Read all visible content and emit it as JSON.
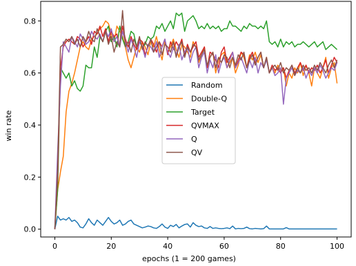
{
  "chart_data": {
    "type": "line",
    "title": "",
    "xlabel": "epochs (1 = 200 games)",
    "ylabel": "win rate",
    "xlim": [
      -5,
      105
    ],
    "ylim": [
      -0.03,
      0.875
    ],
    "xticks": [
      0,
      20,
      40,
      60,
      80,
      100
    ],
    "yticks": [
      0.0,
      0.2,
      0.4,
      0.6,
      0.8
    ],
    "xtick_labels": [
      "0",
      "20",
      "40",
      "60",
      "80",
      "100"
    ],
    "ytick_labels": [
      "0.0",
      "0.2",
      "0.4",
      "0.6",
      "0.8"
    ],
    "grid": false,
    "legend_position": "center",
    "x": [
      0,
      1,
      2,
      3,
      4,
      5,
      6,
      7,
      8,
      9,
      10,
      11,
      12,
      13,
      14,
      15,
      16,
      17,
      18,
      19,
      20,
      21,
      22,
      23,
      24,
      25,
      26,
      27,
      28,
      29,
      30,
      31,
      32,
      33,
      34,
      35,
      36,
      37,
      38,
      39,
      40,
      41,
      42,
      43,
      44,
      45,
      46,
      47,
      48,
      49,
      50,
      51,
      52,
      53,
      54,
      55,
      56,
      57,
      58,
      59,
      60,
      61,
      62,
      63,
      64,
      65,
      66,
      67,
      68,
      69,
      70,
      71,
      72,
      73,
      74,
      75,
      76,
      77,
      78,
      79,
      80,
      81,
      82,
      83,
      84,
      85,
      86,
      87,
      88,
      89,
      90,
      91,
      92,
      93,
      94,
      95,
      96,
      97,
      98,
      99,
      100
    ],
    "series": [
      {
        "name": "Random",
        "color": "#1f77b4",
        "values": [
          0.0,
          0.05,
          0.035,
          0.04,
          0.035,
          0.045,
          0.03,
          0.035,
          0.025,
          0.008,
          0.005,
          0.02,
          0.04,
          0.025,
          0.015,
          0.035,
          0.025,
          0.015,
          0.03,
          0.045,
          0.03,
          0.02,
          0.025,
          0.035,
          0.015,
          0.02,
          0.03,
          0.035,
          0.02,
          0.015,
          0.01,
          0.005,
          0.008,
          0.012,
          0.01,
          0.005,
          0.003,
          0.01,
          0.02,
          0.008,
          0.003,
          0.015,
          0.01,
          0.018,
          0.005,
          0.012,
          0.018,
          0.02,
          0.008,
          0.025,
          0.015,
          0.01,
          0.012,
          0.005,
          0.003,
          0.01,
          0.003,
          0.005,
          0.003,
          0.002,
          0.003,
          0.005,
          0.002,
          0.012,
          0.001,
          0.003,
          0.002,
          0.003,
          0.008,
          0.002,
          0.001,
          0.003,
          0.002,
          0.001,
          0.002,
          0.012,
          0.001,
          0.001,
          0.001,
          0.001,
          0.001,
          0.001,
          0.006,
          0.001,
          0.001,
          0.001,
          0.001,
          0.001,
          0.001,
          0.001,
          0.001,
          0.001,
          0.001,
          0.001,
          0.001,
          0.001,
          0.001,
          0.001,
          0.001,
          0.001,
          0.001
        ]
      },
      {
        "name": "Double-Q",
        "color": "#ff7f0e",
        "values": [
          0.0,
          0.15,
          0.22,
          0.28,
          0.45,
          0.53,
          0.56,
          0.6,
          0.65,
          0.7,
          0.72,
          0.7,
          0.69,
          0.73,
          0.74,
          0.75,
          0.77,
          0.78,
          0.8,
          0.79,
          0.75,
          0.72,
          0.78,
          0.76,
          0.74,
          0.7,
          0.65,
          0.62,
          0.66,
          0.7,
          0.68,
          0.72,
          0.7,
          0.67,
          0.72,
          0.7,
          0.74,
          0.69,
          0.65,
          0.72,
          0.68,
          0.7,
          0.73,
          0.69,
          0.66,
          0.71,
          0.7,
          0.68,
          0.66,
          0.72,
          0.7,
          0.64,
          0.67,
          0.7,
          0.62,
          0.66,
          0.68,
          0.6,
          0.65,
          0.67,
          0.68,
          0.62,
          0.64,
          0.66,
          0.6,
          0.63,
          0.68,
          0.66,
          0.62,
          0.67,
          0.65,
          0.68,
          0.64,
          0.67,
          0.62,
          0.66,
          0.6,
          0.62,
          0.6,
          0.63,
          0.61,
          0.62,
          0.55,
          0.6,
          0.58,
          0.62,
          0.6,
          0.64,
          0.59,
          0.63,
          0.6,
          0.55,
          0.62,
          0.6,
          0.58,
          0.62,
          0.66,
          0.58,
          0.62,
          0.64,
          0.56
        ]
      },
      {
        "name": "Target",
        "color": "#2ca02c",
        "values": [
          0.0,
          0.15,
          0.62,
          0.6,
          0.58,
          0.6,
          0.55,
          0.57,
          0.54,
          0.53,
          0.55,
          0.63,
          0.62,
          0.62,
          0.7,
          0.66,
          0.74,
          0.72,
          0.76,
          0.78,
          0.72,
          0.74,
          0.7,
          0.78,
          0.73,
          0.7,
          0.72,
          0.76,
          0.75,
          0.7,
          0.72,
          0.7,
          0.71,
          0.74,
          0.73,
          0.74,
          0.78,
          0.77,
          0.79,
          0.76,
          0.78,
          0.8,
          0.77,
          0.83,
          0.82,
          0.83,
          0.76,
          0.8,
          0.81,
          0.82,
          0.8,
          0.77,
          0.78,
          0.77,
          0.79,
          0.77,
          0.78,
          0.77,
          0.78,
          0.76,
          0.77,
          0.77,
          0.8,
          0.78,
          0.78,
          0.77,
          0.76,
          0.78,
          0.77,
          0.79,
          0.78,
          0.78,
          0.77,
          0.78,
          0.77,
          0.8,
          0.72,
          0.71,
          0.72,
          0.7,
          0.73,
          0.7,
          0.72,
          0.71,
          0.72,
          0.7,
          0.71,
          0.71,
          0.72,
          0.71,
          0.7,
          0.71,
          0.72,
          0.7,
          0.71,
          0.72,
          0.69,
          0.7,
          0.71,
          0.7,
          0.69
        ]
      },
      {
        "name": "QVMAX",
        "color": "#d62728",
        "values": [
          0.0,
          0.2,
          0.62,
          0.7,
          0.72,
          0.73,
          0.72,
          0.71,
          0.74,
          0.73,
          0.7,
          0.72,
          0.74,
          0.71,
          0.76,
          0.75,
          0.78,
          0.74,
          0.77,
          0.72,
          0.76,
          0.74,
          0.75,
          0.7,
          0.78,
          0.73,
          0.7,
          0.74,
          0.71,
          0.69,
          0.73,
          0.72,
          0.67,
          0.7,
          0.73,
          0.71,
          0.68,
          0.72,
          0.7,
          0.73,
          0.67,
          0.72,
          0.69,
          0.72,
          0.7,
          0.73,
          0.67,
          0.71,
          0.68,
          0.7,
          0.72,
          0.66,
          0.68,
          0.7,
          0.62,
          0.68,
          0.67,
          0.65,
          0.62,
          0.68,
          0.7,
          0.64,
          0.66,
          0.68,
          0.62,
          0.65,
          0.68,
          0.67,
          0.62,
          0.66,
          0.68,
          0.64,
          0.66,
          0.68,
          0.62,
          0.66,
          0.6,
          0.63,
          0.61,
          0.62,
          0.6,
          0.62,
          0.58,
          0.61,
          0.63,
          0.6,
          0.62,
          0.64,
          0.61,
          0.63,
          0.6,
          0.62,
          0.61,
          0.63,
          0.6,
          0.62,
          0.65,
          0.6,
          0.63,
          0.66,
          0.64
        ]
      },
      {
        "name": "Q",
        "color": "#9467bd",
        "values": [
          0.0,
          0.3,
          0.55,
          0.72,
          0.7,
          0.68,
          0.74,
          0.72,
          0.7,
          0.75,
          0.73,
          0.71,
          0.72,
          0.76,
          0.74,
          0.73,
          0.75,
          0.72,
          0.76,
          0.74,
          0.77,
          0.72,
          0.74,
          0.7,
          0.76,
          0.72,
          0.68,
          0.73,
          0.7,
          0.66,
          0.72,
          0.7,
          0.66,
          0.71,
          0.7,
          0.68,
          0.72,
          0.66,
          0.7,
          0.73,
          0.68,
          0.66,
          0.7,
          0.67,
          0.71,
          0.65,
          0.68,
          0.7,
          0.64,
          0.68,
          0.7,
          0.62,
          0.66,
          0.68,
          0.6,
          0.65,
          0.62,
          0.67,
          0.6,
          0.64,
          0.66,
          0.62,
          0.65,
          0.68,
          0.62,
          0.64,
          0.66,
          0.63,
          0.6,
          0.65,
          0.62,
          0.66,
          0.6,
          0.64,
          0.62,
          0.65,
          0.6,
          0.62,
          0.59,
          0.6,
          0.62,
          0.48,
          0.58,
          0.6,
          0.62,
          0.59,
          0.61,
          0.6,
          0.62,
          0.58,
          0.61,
          0.59,
          0.62,
          0.6,
          0.63,
          0.61,
          0.58,
          0.6,
          0.62,
          0.61,
          0.64
        ]
      },
      {
        "name": "QV",
        "color": "#8c564b",
        "values": [
          0.0,
          0.22,
          0.7,
          0.71,
          0.73,
          0.72,
          0.74,
          0.71,
          0.73,
          0.7,
          0.74,
          0.72,
          0.76,
          0.73,
          0.72,
          0.77,
          0.74,
          0.72,
          0.76,
          0.71,
          0.74,
          0.68,
          0.72,
          0.7,
          0.84,
          0.7,
          0.72,
          0.68,
          0.73,
          0.7,
          0.74,
          0.69,
          0.72,
          0.7,
          0.73,
          0.68,
          0.7,
          0.72,
          0.67,
          0.71,
          0.7,
          0.68,
          0.72,
          0.66,
          0.7,
          0.72,
          0.66,
          0.7,
          0.68,
          0.71,
          0.7,
          0.65,
          0.67,
          0.69,
          0.63,
          0.66,
          0.68,
          0.62,
          0.66,
          0.64,
          0.67,
          0.66,
          0.62,
          0.66,
          0.63,
          0.67,
          0.65,
          0.68,
          0.62,
          0.65,
          0.67,
          0.63,
          0.66,
          0.68,
          0.62,
          0.66,
          0.6,
          0.62,
          0.63,
          0.61,
          0.64,
          0.6,
          0.62,
          0.61,
          0.63,
          0.59,
          0.62,
          0.6,
          0.63,
          0.61,
          0.62,
          0.6,
          0.63,
          0.61,
          0.64,
          0.62,
          0.6,
          0.63,
          0.65,
          0.62,
          0.65
        ]
      }
    ]
  }
}
